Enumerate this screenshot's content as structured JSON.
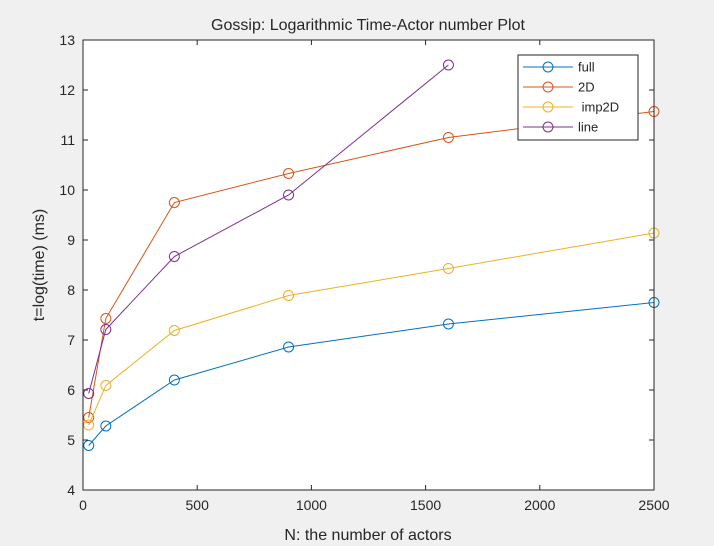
{
  "chart_data": {
    "type": "line",
    "title": "Gossip: Logarithmic Time-Actor number Plot",
    "xlabel": "N: the number of actors",
    "ylabel": "t=log(time) (ms)",
    "xlim": [
      0,
      2500
    ],
    "ylim": [
      4,
      13
    ],
    "xticks": [
      0,
      500,
      1000,
      1500,
      2000,
      2500
    ],
    "yticks": [
      4,
      5,
      6,
      7,
      8,
      9,
      10,
      11,
      12,
      13
    ],
    "grid": false,
    "legend_position": "top-right",
    "marker": "circle",
    "series": [
      {
        "name": "full",
        "color": "#0072BD",
        "x": [
          25,
          100,
          400,
          900,
          1600,
          2500
        ],
        "y": [
          4.89,
          5.28,
          6.2,
          6.86,
          7.32,
          7.75
        ]
      },
      {
        "name": "2D",
        "color": "#D95319",
        "x": [
          25,
          100,
          400,
          900,
          1600,
          2500
        ],
        "y": [
          5.45,
          7.43,
          9.75,
          10.33,
          11.05,
          11.57
        ]
      },
      {
        "name": " imp2D",
        "color": "#EDB120",
        "x": [
          25,
          100,
          400,
          900,
          1600,
          2500
        ],
        "y": [
          5.3,
          6.09,
          7.19,
          7.89,
          8.43,
          9.14
        ]
      },
      {
        "name": "line",
        "color": "#7E2F8E",
        "x": [
          25,
          100,
          400,
          900,
          1600
        ],
        "y": [
          5.93,
          7.21,
          8.67,
          9.9,
          12.5
        ]
      }
    ]
  }
}
